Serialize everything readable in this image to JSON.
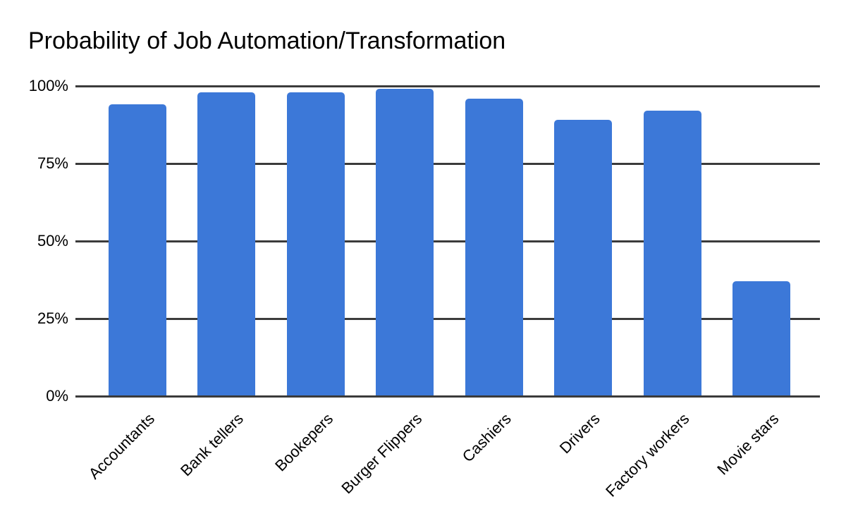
{
  "chart_data": {
    "type": "bar",
    "title": "Probability of Job Automation/Transformation",
    "categories": [
      "Accountants",
      "Bank tellers",
      "Bookepers",
      "Burger Flippers",
      "Cashiers",
      "Drivers",
      "Factory workers",
      "Movie stars"
    ],
    "values": [
      94,
      98,
      98,
      99,
      96,
      89,
      92,
      37
    ],
    "value_unit": "%",
    "xlabel": "",
    "ylabel": "",
    "ylim": [
      0,
      100
    ],
    "y_ticks": [
      {
        "label": "0%",
        "value": 0
      },
      {
        "label": "25%",
        "value": 25
      },
      {
        "label": "50%",
        "value": 50
      },
      {
        "label": "75%",
        "value": 75
      },
      {
        "label": "100%",
        "value": 100
      }
    ],
    "grid": true,
    "legend": "none",
    "colors": {
      "bar": "#3c78d8",
      "gridline": "#3b3b3b",
      "text": "#000000",
      "background": "#ffffff"
    }
  }
}
